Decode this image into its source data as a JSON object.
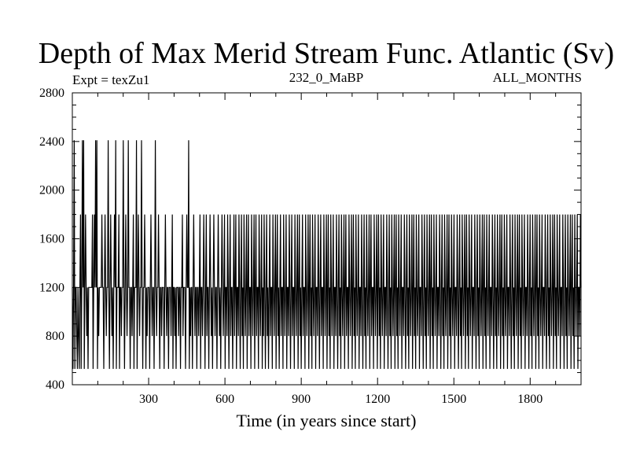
{
  "chart_data": {
    "type": "line",
    "title": "Depth of Max Merid Stream Func. Atlantic (Sv)",
    "subtitle_left": "Expt = texZu1",
    "subtitle_center": "232_0_MaBP",
    "subtitle_right": "ALL_MONTHS",
    "xlabel": "Time (in years since start)",
    "ylabel": "",
    "xlim": [
      0,
      2000
    ],
    "ylim": [
      400,
      2800
    ],
    "x_ticks": [
      300,
      600,
      900,
      1200,
      1500,
      1800
    ],
    "y_ticks": [
      400,
      800,
      1200,
      1600,
      2000,
      2400,
      2800
    ],
    "x_tick_labels": [
      "300",
      "600",
      "900",
      "1200",
      "1500",
      "1800"
    ],
    "y_tick_labels": [
      "400",
      "800",
      "1200",
      "1600",
      "2000",
      "2400",
      "2800"
    ],
    "grid": false,
    "line_color": "#000000",
    "series": [
      {
        "levels": [
          530,
          800,
          1200,
          1800,
          2410
        ],
        "values": [
          1200,
          530,
          1200,
          2410,
          530,
          1200,
          1200,
          800,
          530,
          1200,
          800,
          530,
          1200,
          1800,
          530,
          1200,
          2410,
          1200,
          2410,
          530,
          1200,
          1800,
          1200,
          800,
          1200,
          530,
          1200,
          1200,
          1200,
          1200,
          1200,
          1200,
          1800,
          530,
          1200,
          1800,
          1200,
          2410,
          1200,
          2410,
          530,
          1200,
          800,
          1200,
          1200,
          1200,
          1200,
          1800,
          1200,
          1200,
          530,
          1200,
          1800,
          1200,
          800,
          1200,
          1200,
          2410,
          1200,
          530,
          1200,
          1800,
          1200,
          800,
          1200,
          530,
          1200,
          1800,
          1200,
          2410,
          530,
          1200,
          1200,
          1200,
          1800,
          530,
          1200,
          1200,
          800,
          1200,
          1200,
          2410,
          1200,
          530,
          1200,
          1800,
          1200,
          800,
          1200,
          2410,
          1200,
          1200,
          530,
          1200,
          1200,
          800,
          1200,
          1800,
          530,
          1200,
          1200,
          1200,
          2410,
          530,
          1200,
          1800,
          1200,
          800,
          1200,
          1200,
          2410,
          1200,
          530,
          1200,
          1200,
          1800,
          1200,
          530,
          1200,
          800,
          1200,
          1200,
          1200,
          530,
          1200,
          1800,
          1200,
          800,
          1200,
          1200,
          530,
          1200,
          2410,
          1200,
          800,
          1200,
          1200,
          1800,
          1200,
          530,
          1200,
          1200,
          800,
          1200,
          1200,
          1200,
          530,
          1200,
          1800,
          1200,
          800,
          1200,
          1200,
          530,
          1200,
          1200,
          1200,
          800,
          1200,
          1800,
          530,
          1200,
          1200,
          800,
          1200,
          530,
          1200,
          1200,
          1200,
          800,
          1200,
          1200,
          530,
          1200,
          1200,
          1800,
          800,
          1200,
          1200,
          1200,
          530,
          1200,
          1800,
          1200,
          1200,
          2410,
          530,
          1200,
          800,
          1200,
          1200,
          530,
          1200,
          1800,
          1200,
          800,
          1200,
          1200,
          530,
          1200,
          1200,
          800,
          1200,
          1800,
          530,
          1200,
          1200,
          800,
          1200,
          1800,
          1200,
          530,
          1200,
          1800,
          800,
          1200,
          1200,
          530,
          1200,
          1800,
          1200,
          800,
          1200,
          530,
          1200,
          1800,
          1200,
          800,
          1200,
          1200,
          530,
          1200,
          1800,
          1200,
          800,
          1200,
          530,
          1200,
          1800,
          1200,
          800,
          1200,
          1800,
          530,
          1200,
          1200,
          800,
          1800,
          1200,
          530,
          1200,
          1800,
          800,
          1200,
          1200,
          530,
          1200,
          1800,
          800,
          1200,
          1800,
          530,
          1200,
          1200,
          800,
          1800,
          1200,
          530,
          1200,
          1800,
          800,
          1200,
          530,
          1800,
          1200,
          800,
          1200,
          1800,
          530,
          1200,
          1800,
          800,
          1200,
          1200,
          530,
          1800,
          1200,
          800,
          1200,
          1800,
          530,
          1200,
          1800,
          800,
          1200,
          1200,
          530,
          1800,
          1200,
          800,
          1200,
          1800,
          530,
          1200,
          800,
          1800,
          1200,
          530,
          1200,
          1800,
          800,
          1200,
          530,
          1200,
          1800,
          800,
          1200,
          1200,
          530,
          1800,
          1200,
          800,
          1200,
          1800,
          530,
          1200,
          1800,
          800,
          1200,
          530,
          1200,
          1800,
          800,
          1200,
          1200,
          530,
          1800,
          1200,
          800,
          1200,
          1800,
          530,
          1200,
          1200,
          800,
          1800,
          1200,
          530,
          1200,
          1800,
          800,
          1200,
          1200,
          530,
          1800,
          1200,
          800,
          1200,
          1800,
          530,
          1200,
          1800,
          800,
          1200,
          530,
          1200,
          1800,
          800,
          1200,
          1200,
          530,
          1800,
          1200,
          800,
          1200,
          1800,
          530,
          1200,
          1800,
          800,
          1200,
          530,
          1800,
          1200,
          800,
          1200,
          1800,
          530,
          1200,
          1200,
          800,
          1800,
          1200,
          530,
          1200,
          1800,
          800,
          1200,
          1200,
          530,
          1800,
          1200,
          800,
          1200,
          1800,
          530,
          1200,
          1800,
          800,
          1200,
          530,
          1800,
          1200,
          800,
          1200,
          1800,
          530,
          1200,
          1200,
          800,
          1800,
          1200,
          530,
          1200,
          1800,
          800,
          1200,
          530,
          1800,
          1200,
          800,
          1200,
          1800,
          530,
          1200,
          1800,
          800,
          1200,
          1200,
          530,
          1800,
          1200,
          800,
          1200,
          1800,
          530,
          1200,
          1800,
          800,
          1200,
          530,
          1800,
          1200,
          800,
          1200,
          1800,
          530,
          1200,
          1200,
          800,
          1800,
          1200,
          530,
          1200,
          1800,
          800,
          1200,
          530,
          1800,
          1200,
          800,
          1200,
          1800,
          530,
          1200,
          1800,
          800,
          1200,
          1200,
          530,
          1800,
          1200,
          800,
          1200,
          1800,
          530,
          1200,
          1800,
          800,
          1200,
          530,
          1800,
          1200,
          800,
          1200,
          1800,
          530,
          1200,
          1200,
          800,
          1800,
          1200,
          530,
          1200,
          1800,
          800,
          1200,
          530,
          1800,
          1200,
          800,
          1200,
          1800,
          530,
          1200,
          1800,
          800,
          1200,
          530,
          1800,
          1200,
          800,
          1200,
          1800,
          530,
          1200,
          1200,
          800,
          1800,
          1200,
          530,
          1200,
          1800,
          800,
          1200,
          530,
          1800,
          1200,
          800,
          1200,
          1800,
          530,
          1200,
          1800,
          800,
          1200,
          530,
          1800,
          1200,
          800,
          1200,
          1800,
          530,
          1200,
          1200,
          800,
          1800,
          1200,
          530,
          1200,
          1800,
          800,
          1200,
          530,
          1800,
          1200,
          800,
          1200,
          1800,
          530,
          1200,
          1800,
          800,
          1200,
          530,
          1800,
          1200,
          800,
          1200,
          1800,
          530,
          1200,
          1200,
          800,
          1800,
          1200,
          530,
          1200,
          1800,
          800,
          1200,
          530,
          1800,
          1200,
          800,
          1200,
          1800,
          530,
          1200,
          1800,
          800,
          1200,
          530,
          1800,
          1200,
          800,
          1200,
          1800,
          530,
          1200,
          1200,
          800,
          1800,
          1200,
          530,
          1200,
          1800,
          800,
          1200,
          530,
          1800,
          1200,
          800,
          1200,
          1800,
          530,
          1200,
          1800,
          800,
          1200,
          530,
          1800,
          1200,
          800,
          1200,
          1800,
          530,
          1200,
          1200,
          800,
          1800,
          1200,
          530,
          1200,
          1800,
          800,
          1200,
          530,
          1800,
          1200,
          800,
          1200,
          1800,
          530,
          1200,
          1800,
          800,
          1200,
          530,
          1800,
          1200,
          800,
          1200,
          1800,
          530,
          1200,
          1200,
          800,
          1800,
          1200,
          530,
          1200,
          1800,
          800,
          1200,
          530,
          1800,
          1200,
          800,
          1200,
          1800,
          530,
          1200,
          1800,
          800,
          1200,
          530,
          1800,
          1200,
          800,
          1200,
          1800,
          530,
          1200,
          1200,
          800,
          1800,
          1200,
          530,
          1200,
          1800,
          800,
          1200,
          530,
          1800,
          1200,
          800,
          1200,
          1800,
          530,
          1200,
          1800,
          800,
          1200,
          530,
          1800,
          1200,
          800,
          1200,
          1800,
          530,
          1200,
          1200,
          800,
          1800,
          1200,
          530,
          1200,
          1800,
          800,
          1200,
          530,
          1800,
          1200,
          800,
          1200,
          1800,
          530,
          1200,
          1800,
          800,
          1200,
          530,
          1800,
          1200,
          800,
          1200,
          1800,
          530,
          1200,
          1200,
          800,
          1800,
          1200,
          530,
          1200,
          1800,
          800,
          1200,
          530,
          1800,
          1200,
          800,
          1200,
          1800,
          530,
          1200,
          1800,
          800,
          1200,
          530,
          1800,
          1200,
          800,
          1200,
          1800,
          530,
          1200,
          1200,
          800,
          1800,
          1200,
          530,
          1200,
          1800,
          800,
          1200,
          530,
          1800,
          1200,
          800,
          1200,
          1800,
          530,
          1200,
          1800,
          800,
          1200,
          530,
          1800,
          1200,
          800,
          1200,
          1800,
          530,
          1200,
          1200,
          800,
          1800,
          1200
        ]
      }
    ]
  }
}
